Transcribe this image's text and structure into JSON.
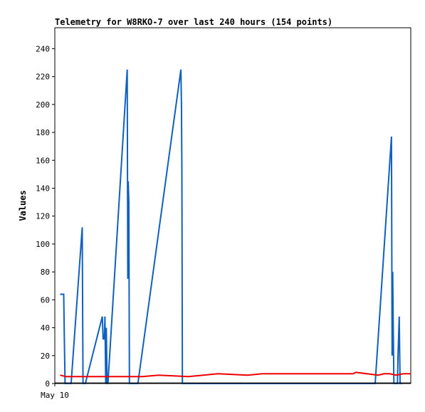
{
  "chart_data": {
    "type": "line",
    "title": "Telemetry for W8RKO-7 over last 240 hours (154 points)",
    "xlabel": "",
    "ylabel": "Values",
    "x_tick_labels": [
      "May 10"
    ],
    "ylim": [
      0,
      255
    ],
    "xlim": [
      0,
      240
    ],
    "y_ticks": [
      0,
      20,
      40,
      60,
      80,
      100,
      120,
      140,
      160,
      180,
      200,
      220,
      240
    ],
    "grid": false,
    "legend": "none",
    "series": [
      {
        "color": "#1060c0",
        "points": [
          [
            3.6,
            64
          ],
          [
            6.0,
            64
          ],
          [
            6.4,
            35
          ],
          [
            6.9,
            0
          ],
          [
            9.6,
            0
          ],
          [
            11.0,
            0
          ],
          [
            18.5,
            112
          ],
          [
            19.0,
            0
          ],
          [
            20.6,
            0
          ],
          [
            32.0,
            48
          ],
          [
            32.6,
            32
          ],
          [
            33.4,
            32
          ],
          [
            33.8,
            48
          ],
          [
            34.3,
            0
          ],
          [
            34.7,
            40
          ],
          [
            35.3,
            0
          ],
          [
            35.8,
            0
          ],
          [
            48.8,
            225
          ],
          [
            49.2,
            75
          ],
          [
            49.5,
            145
          ],
          [
            49.9,
            130
          ],
          [
            50.3,
            0
          ],
          [
            55.0,
            0
          ],
          [
            56.0,
            0
          ],
          [
            85.0,
            225
          ],
          [
            85.4,
            200
          ],
          [
            85.7,
            152
          ],
          [
            86.0,
            0
          ],
          [
            87.0,
            0
          ],
          [
            216.0,
            0
          ],
          [
            227.0,
            177
          ],
          [
            227.4,
            20
          ],
          [
            227.8,
            80
          ],
          [
            228.2,
            40
          ],
          [
            228.6,
            0
          ],
          [
            231.0,
            0
          ],
          [
            231.4,
            20
          ],
          [
            232.2,
            48
          ],
          [
            232.8,
            0
          ],
          [
            234.0,
            0
          ]
        ]
      },
      {
        "color": "#ee0000",
        "points": [
          [
            3.6,
            6
          ],
          [
            7.5,
            5
          ],
          [
            40.0,
            5
          ],
          [
            54.0,
            5
          ],
          [
            59.0,
            5
          ],
          [
            70.0,
            6
          ],
          [
            90.0,
            5
          ],
          [
            110.0,
            7
          ],
          [
            130.0,
            6
          ],
          [
            140.0,
            7
          ],
          [
            170.0,
            7
          ],
          [
            201.0,
            7
          ],
          [
            203.0,
            8
          ],
          [
            218.0,
            6
          ],
          [
            222.0,
            7
          ],
          [
            226.0,
            7
          ],
          [
            230.0,
            6
          ],
          [
            235.0,
            7
          ],
          [
            240.0,
            7
          ]
        ]
      },
      {
        "color": "#000000",
        "points": [
          [
            0,
            0.3
          ],
          [
            240,
            0.3
          ]
        ]
      }
    ]
  }
}
